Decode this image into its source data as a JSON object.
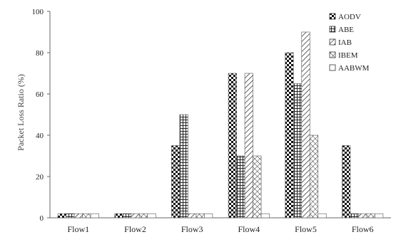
{
  "chart_data": {
    "type": "bar",
    "categories": [
      "Flow1",
      "Flow2",
      "Flow3",
      "Flow4",
      "Flow5",
      "Flow6"
    ],
    "series": [
      {
        "name": "AODV",
        "values": [
          2,
          2,
          35,
          70,
          80,
          35
        ]
      },
      {
        "name": "ABE",
        "values": [
          2,
          2,
          50,
          30,
          65,
          2
        ]
      },
      {
        "name": "IAB",
        "values": [
          2,
          2,
          2,
          70,
          90,
          2
        ]
      },
      {
        "name": "IBEM",
        "values": [
          2,
          2,
          2,
          30,
          40,
          2
        ]
      },
      {
        "name": "AABWM",
        "values": [
          2,
          2,
          2,
          2,
          2,
          2
        ]
      }
    ],
    "xlabel": "",
    "ylabel": "Packet Loss Ratio (%)",
    "ylim": [
      0,
      100
    ],
    "yticks": [
      0,
      20,
      40,
      60,
      80,
      100
    ],
    "grid": false,
    "legend_position": "top-right",
    "series_patterns": [
      "checker",
      "grid",
      "diagonal-hatch",
      "diagonal-crosshatch",
      "blank"
    ]
  }
}
